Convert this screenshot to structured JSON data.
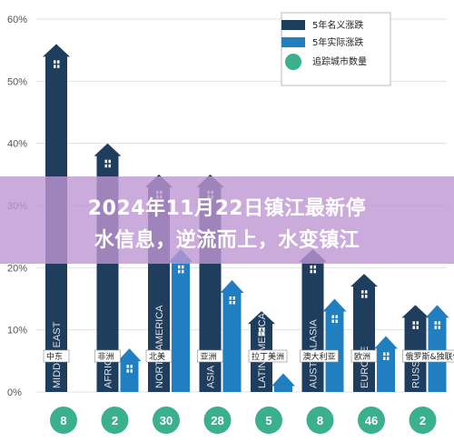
{
  "chart_data": {
    "type": "bar",
    "title": "",
    "xlabel": "",
    "ylabel": "",
    "ylim": [
      0,
      60
    ],
    "yticks": [
      "0%",
      "10%",
      "20%",
      "30%",
      "40%",
      "50%",
      "60%"
    ],
    "grid": true,
    "legend_position": "top-right",
    "legend": [
      "5年名义涨跌",
      "5年实际涨跌",
      "追踪城市数量"
    ],
    "colors": {
      "nominal": "#1f3d5c",
      "real": "#1f7fc0",
      "count": "#3bb08f"
    },
    "categories": [
      {
        "region": "MIDDLE EAST",
        "cn": "中东"
      },
      {
        "region": "AFRICA",
        "cn": "非洲"
      },
      {
        "region": "NORTH AMERICA",
        "cn": "北美"
      },
      {
        "region": "ASIA",
        "cn": "亚洲"
      },
      {
        "region": "LATIN AMERICA",
        "cn": "拉丁美洲"
      },
      {
        "region": "AUSTRALASIA",
        "cn": "澳大利亚"
      },
      {
        "region": "EUROPE",
        "cn": "欧洲"
      },
      {
        "region": "RUSSIA",
        "cn": "俄罗斯&独联体"
      }
    ],
    "series": [
      {
        "name": "5年名义涨跌",
        "values": [
          56,
          40,
          35,
          35,
          13,
          23,
          19,
          14
        ]
      },
      {
        "name": "5年实际涨跌",
        "values": [
          null,
          7,
          23,
          18,
          3,
          15,
          9,
          14
        ]
      },
      {
        "name": "追踪城市数量",
        "values": [
          8,
          2,
          30,
          28,
          5,
          8,
          46,
          2
        ]
      }
    ]
  },
  "overlay": {
    "line1": "2024年11月22日镇江最新停",
    "line2": "水信息，逆流而上，水变镇江"
  }
}
